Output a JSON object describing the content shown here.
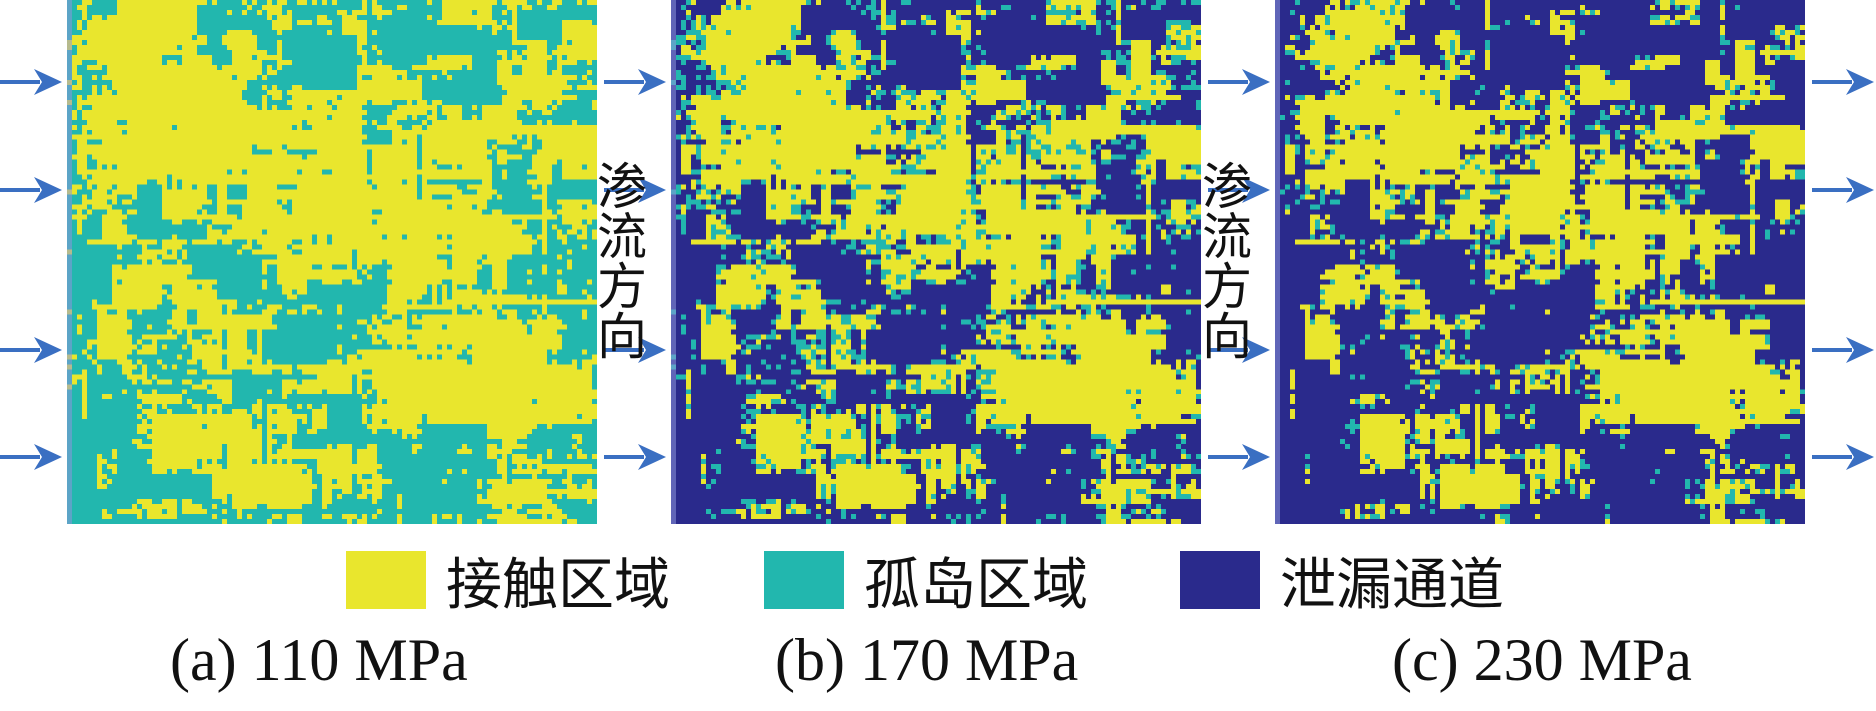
{
  "colors": {
    "contact": "#e9e62d",
    "island": "#22b7ae",
    "leak": "#2a2a8c",
    "arrow": "#3a6fc2"
  },
  "flow_label": "渗流方向",
  "legend": {
    "contact": "接触区域",
    "island": "孤岛区域",
    "leak": "泄漏通道"
  },
  "panels": [
    {
      "caption": "(a) 110 MPa",
      "leak_fraction": 0.0,
      "island_fraction": 0.42
    },
    {
      "caption": "(b) 170 MPa",
      "leak_fraction": 0.44,
      "island_fraction": 0.12
    },
    {
      "caption": "(c) 230 MPa",
      "leak_fraction": 0.55,
      "island_fraction": 0.06
    }
  ]
}
